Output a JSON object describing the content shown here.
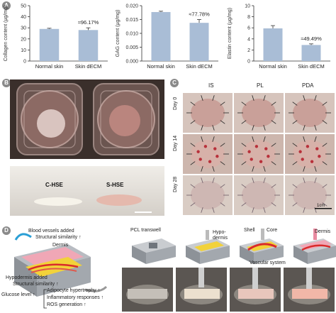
{
  "labels": {
    "a": "A",
    "b": "B",
    "c": "C",
    "d": "D"
  },
  "chart_data": [
    {
      "type": "bar",
      "categories": [
        "Normal skin",
        "Skin dECM"
      ],
      "values": [
        29,
        28
      ],
      "errors": [
        0.6,
        2.0
      ],
      "ylabel": "Collagen content (µg/mg)",
      "ylim": [
        0,
        50
      ],
      "yticks": [
        "0",
        "10",
        "20",
        "30",
        "40",
        "50"
      ],
      "annotation": "≈96.17%"
    },
    {
      "type": "bar",
      "categories": [
        "Normal skin",
        "Skin dECM"
      ],
      "values": [
        0.0177,
        0.0138
      ],
      "errors": [
        0.0003,
        0.0012
      ],
      "ylabel": "GAG content (µg/mg)",
      "ylim": [
        0,
        0.02
      ],
      "yticks": [
        "0.000",
        "0.005",
        "0.010",
        "0.015",
        "0.020"
      ],
      "annotation": "≈77.78%"
    },
    {
      "type": "bar",
      "categories": [
        "Normal skin",
        "Skin dECM"
      ],
      "values": [
        5.9,
        2.9
      ],
      "errors": [
        0.5,
        0.2
      ],
      "ylabel": "Elastin content (µg/mg)",
      "ylim": [
        0,
        10
      ],
      "yticks": [
        "0",
        "2",
        "4",
        "6",
        "8",
        "10"
      ],
      "annotation": "≈49.49%"
    }
  ],
  "panel_b": {
    "left_label": "C-HSE",
    "right_label": "S-HSE"
  },
  "panel_c": {
    "columns": [
      "IS",
      "PL",
      "PDA"
    ],
    "rows": [
      "Day 0",
      "Day 14",
      "Day 28"
    ],
    "scale": "1cm"
  },
  "panel_d": {
    "blood_vessels": "Blood vessels added",
    "structural_sim": "Structural similarity ↑",
    "dermis": "Dermis",
    "hypodermis_added": "Hypodermis added",
    "structural_sim2": "Structural similarity ↑",
    "glucose": "Glucose level ↑",
    "adipocyte": "Adipocyte hypertrophy ↑",
    "inflammatory": "Inflammatory responses ↑",
    "ros": "ROS generation ↑",
    "pcl": "PCL transwell",
    "hypo": "Hypo-",
    "hypo2": "dermis",
    "shell": "Shell",
    "core": "Core",
    "vascular": "Vascular system",
    "dermis2": "Dermis"
  },
  "colors": {
    "bar": "#a9bdd6",
    "photo_dark": "#3a2a26",
    "tissue": "#d9a8a0"
  }
}
